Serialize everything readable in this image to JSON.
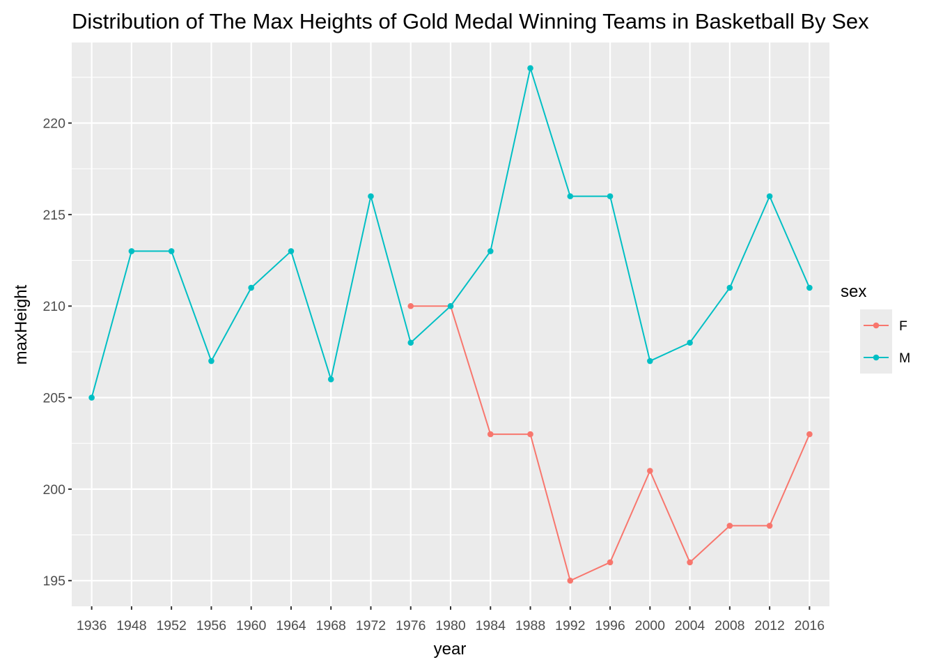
{
  "chart_data": {
    "type": "line",
    "title": "Distribution of The Max Heights of Gold Medal Winning Teams in Basketball By Sex",
    "xlabel": "year",
    "ylabel": "maxHeight",
    "categories": [
      "1936",
      "1948",
      "1952",
      "1956",
      "1960",
      "1964",
      "1968",
      "1972",
      "1976",
      "1980",
      "1984",
      "1988",
      "1992",
      "1996",
      "2000",
      "2004",
      "2008",
      "2012",
      "2016"
    ],
    "ylim": [
      193.6,
      224.4
    ],
    "yticks": [
      195,
      200,
      205,
      210,
      215,
      220
    ],
    "grid": true,
    "legend": {
      "title": "sex",
      "placement": "right"
    },
    "series": [
      {
        "name": "F",
        "color": "#F8766D",
        "x": [
          "1976",
          "1980",
          "1984",
          "1988",
          "1992",
          "1996",
          "2000",
          "2004",
          "2008",
          "2012",
          "2016"
        ],
        "values": [
          210,
          210,
          203,
          203,
          195,
          196,
          201,
          196,
          198,
          198,
          203
        ]
      },
      {
        "name": "M",
        "color": "#00BFC4",
        "x": [
          "1936",
          "1948",
          "1952",
          "1956",
          "1960",
          "1964",
          "1968",
          "1972",
          "1976",
          "1980",
          "1984",
          "1988",
          "1992",
          "1996",
          "2000",
          "2004",
          "2008",
          "2012",
          "2016"
        ],
        "values": [
          205,
          213,
          213,
          207,
          211,
          213,
          206,
          216,
          208,
          210,
          213,
          223,
          216,
          216,
          207,
          208,
          211,
          216,
          211
        ]
      }
    ],
    "panel_background": "#EBEBEB",
    "gridline_color": "#FFFFFF"
  }
}
